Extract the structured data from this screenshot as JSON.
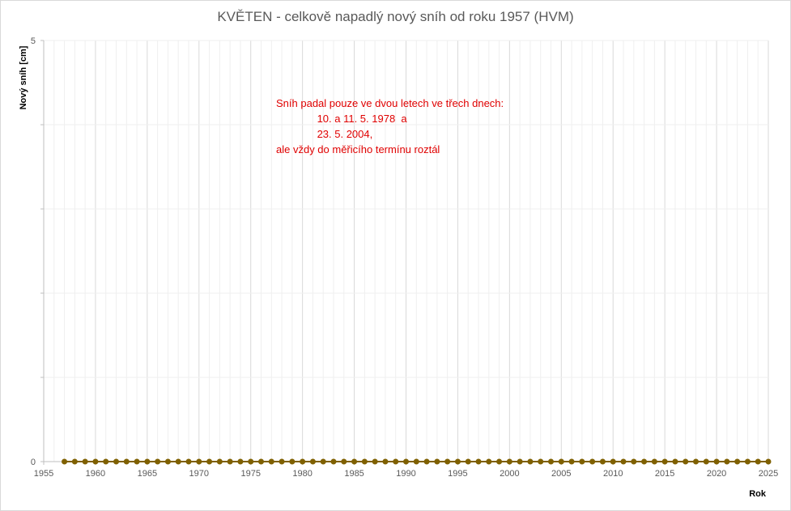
{
  "chart_data": {
    "type": "line",
    "title": "KVĚTEN - celkově napadlý nový sníh od roku 1957 (HVM)",
    "xlabel": "Rok",
    "ylabel": "Nový sníh [cm]",
    "xlim": [
      1955,
      2025
    ],
    "ylim": [
      0,
      5
    ],
    "x_ticks": [
      1955,
      1960,
      1965,
      1970,
      1975,
      1980,
      1985,
      1990,
      1995,
      2000,
      2005,
      2010,
      2015,
      2020,
      2025
    ],
    "y_ticks": [
      0,
      5
    ],
    "grid": true,
    "series": [
      {
        "color": "#7f6000",
        "x": [
          1957,
          1958,
          1959,
          1960,
          1961,
          1962,
          1963,
          1964,
          1965,
          1966,
          1967,
          1968,
          1969,
          1970,
          1971,
          1972,
          1973,
          1974,
          1975,
          1976,
          1977,
          1978,
          1979,
          1980,
          1981,
          1982,
          1983,
          1984,
          1985,
          1986,
          1987,
          1988,
          1989,
          1990,
          1991,
          1992,
          1993,
          1994,
          1995,
          1996,
          1997,
          1998,
          1999,
          2000,
          2001,
          2002,
          2003,
          2004,
          2005,
          2006,
          2007,
          2008,
          2009,
          2010,
          2011,
          2012,
          2013,
          2014,
          2015,
          2016,
          2017,
          2018,
          2019,
          2020,
          2021,
          2022,
          2023,
          2024,
          2025
        ],
        "values": [
          0,
          0,
          0,
          0,
          0,
          0,
          0,
          0,
          0,
          0,
          0,
          0,
          0,
          0,
          0,
          0,
          0,
          0,
          0,
          0,
          0,
          0,
          0,
          0,
          0,
          0,
          0,
          0,
          0,
          0,
          0,
          0,
          0,
          0,
          0,
          0,
          0,
          0,
          0,
          0,
          0,
          0,
          0,
          0,
          0,
          0,
          0,
          0,
          0,
          0,
          0,
          0,
          0,
          0,
          0,
          0,
          0,
          0,
          0,
          0,
          0,
          0,
          0,
          0,
          0,
          0,
          0,
          0,
          0
        ]
      }
    ],
    "annotation": {
      "color": "#e00000",
      "lines": [
        "Sníh padal pouze ve dvou letech ve třech dnech:",
        "              10. a 11. 5. 1978  a",
        "              23. 5. 2004,",
        "ale vždy do měřicího termínu roztál"
      ]
    }
  }
}
